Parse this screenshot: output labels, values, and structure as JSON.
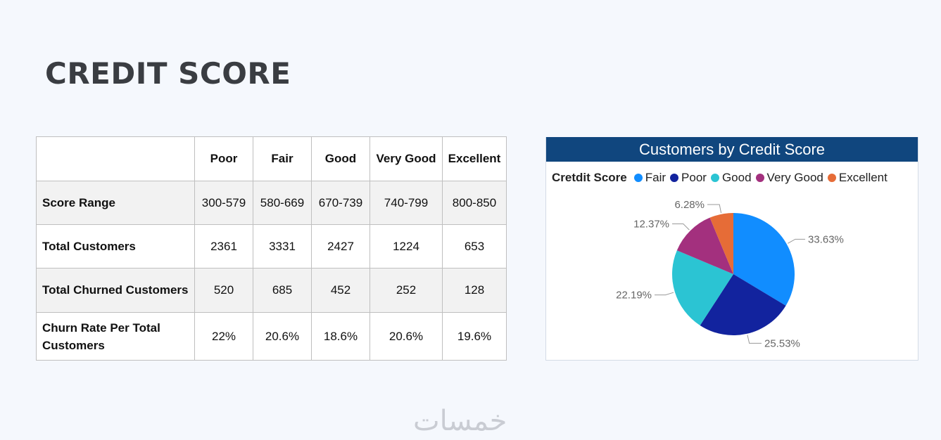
{
  "page": {
    "title": "CREDIT SCORE",
    "watermark": "خمسات"
  },
  "table": {
    "headers": [
      "Poor",
      "Fair",
      "Good",
      "Very Good",
      "Excellent"
    ],
    "rows": [
      {
        "label": "Score Range",
        "values": [
          "300-579",
          "580-669",
          "670-739",
          "740-799",
          "800-850"
        ]
      },
      {
        "label": "Total Customers",
        "values": [
          "2361",
          "3331",
          "2427",
          "1224",
          "653"
        ]
      },
      {
        "label": "Total Churned Customers",
        "values": [
          "520",
          "685",
          "452",
          "252",
          "128"
        ]
      },
      {
        "label": "Churn Rate Per Total Customers",
        "values": [
          "22%",
          "20.6%",
          "18.6%",
          "20.6%",
          "19.6%"
        ]
      }
    ]
  },
  "chart_data": {
    "type": "pie",
    "title": "Customers by Credit Score",
    "legend_title": "Cretdit Score",
    "legend_position": "top",
    "slices": [
      {
        "name": "Fair",
        "value": 33.63,
        "label": "33.63%",
        "color": "#118dff"
      },
      {
        "name": "Poor",
        "value": 25.53,
        "label": "25.53%",
        "color": "#12239e"
      },
      {
        "name": "Good",
        "value": 22.19,
        "label": "22.19%",
        "color": "#2bc4d3"
      },
      {
        "name": "Very Good",
        "value": 12.37,
        "label": "12.37%",
        "color": "#a3307e"
      },
      {
        "name": "Excellent",
        "value": 6.28,
        "label": "6.28%",
        "color": "#e66c37"
      }
    ]
  }
}
